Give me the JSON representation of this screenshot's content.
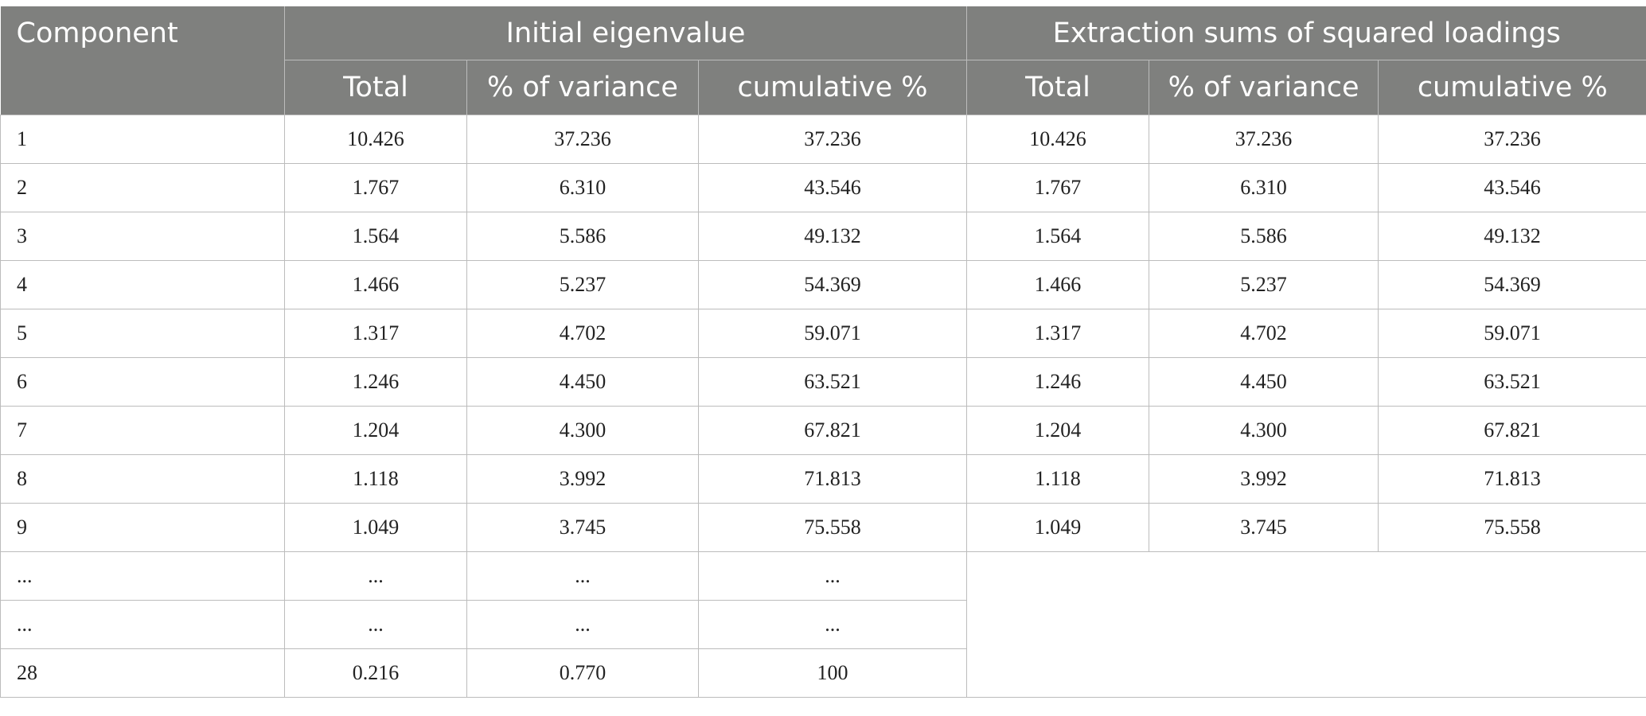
{
  "header": {
    "component": "Component",
    "initial_group": "Initial eigenvalue",
    "extraction_group": "Extraction sums of squared loadings",
    "sub": [
      "Total",
      "% of variance",
      "cumulative %",
      "Total",
      "% of variance",
      "cumulative %"
    ]
  },
  "rows": [
    [
      "1",
      "10.426",
      "37.236",
      "37.236",
      "10.426",
      "37.236",
      "37.236"
    ],
    [
      "2",
      "1.767",
      "6.310",
      "43.546",
      "1.767",
      "6.310",
      "43.546"
    ],
    [
      "3",
      "1.564",
      "5.586",
      "49.132",
      "1.564",
      "5.586",
      "49.132"
    ],
    [
      "4",
      "1.466",
      "5.237",
      "54.369",
      "1.466",
      "5.237",
      "54.369"
    ],
    [
      "5",
      "1.317",
      "4.702",
      "59.071",
      "1.317",
      "4.702",
      "59.071"
    ],
    [
      "6",
      "1.246",
      "4.450",
      "63.521",
      "1.246",
      "4.450",
      "63.521"
    ],
    [
      "7",
      "1.204",
      "4.300",
      "67.821",
      "1.204",
      "4.300",
      "67.821"
    ],
    [
      "8",
      "1.118",
      "3.992",
      "71.813",
      "1.118",
      "3.992",
      "71.813"
    ],
    [
      "9",
      "1.049",
      "3.745",
      "75.558",
      "1.049",
      "3.745",
      "75.558"
    ],
    [
      "...",
      "...",
      "...",
      "..."
    ],
    [
      "...",
      "...",
      "...",
      "..."
    ],
    [
      "28",
      "0.216",
      "0.770",
      "100"
    ]
  ]
}
